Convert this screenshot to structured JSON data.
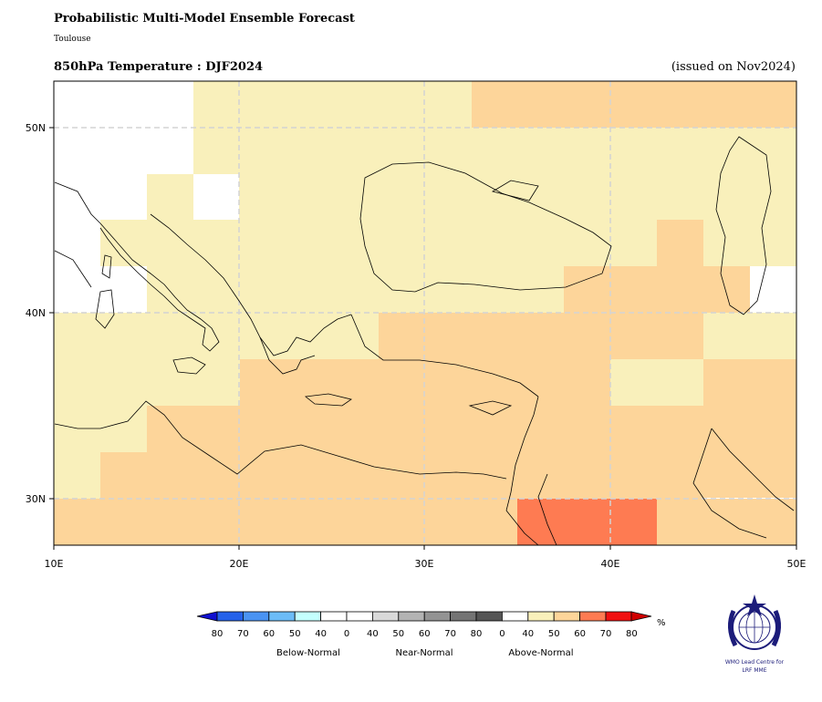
{
  "header": {
    "title": "Probabilistic Multi-Model Ensemble Forecast",
    "subtitle": "Toulouse",
    "variable": "850hPa Temperature : DJF2024",
    "issued": "(issued on Nov2024)"
  },
  "map": {
    "lon_range": [
      10,
      50
    ],
    "lat_range": [
      27.5,
      52.5
    ],
    "x_ticks": [
      {
        "value": 10,
        "label": "10E"
      },
      {
        "value": 20,
        "label": "20E"
      },
      {
        "value": 30,
        "label": "30E"
      },
      {
        "value": 40,
        "label": "40E"
      },
      {
        "value": 50,
        "label": "50E"
      }
    ],
    "y_ticks": [
      {
        "value": 30,
        "label": "30N"
      },
      {
        "value": 40,
        "label": "40N"
      },
      {
        "value": 50,
        "label": "50N"
      }
    ],
    "colors": {
      "above_40": "#f9f0bb",
      "above_50": "#fdd59a",
      "above_60": "#fe7b52",
      "coast": "#000000",
      "grid": "#d3d3d3"
    }
  },
  "legend": {
    "unit": "%",
    "tick_labels": [
      "80",
      "70",
      "60",
      "50",
      "40",
      "0",
      "40",
      "50",
      "60",
      "70",
      "80",
      "0",
      "40",
      "50",
      "60",
      "70",
      "80"
    ],
    "group_labels": [
      "Below-Normal",
      "Near-Normal",
      "Above-Normal"
    ],
    "colors": [
      "#2562ea",
      "#4a93f2",
      "#6cbcf7",
      "#c4fffe",
      "#ffffff",
      "#ffffff",
      "#d9d9d9",
      "#b3b3b3",
      "#939393",
      "#747474",
      "#555555",
      "#ffffff",
      "#f9f0bb",
      "#fdd59a",
      "#fe7b52",
      "#f01010"
    ],
    "low_arrow_color": "#1010d0",
    "high_arrow_color": "#d00000"
  },
  "logo": {
    "line1": "WMO Lead Centre for",
    "line2": "LRF MME"
  }
}
